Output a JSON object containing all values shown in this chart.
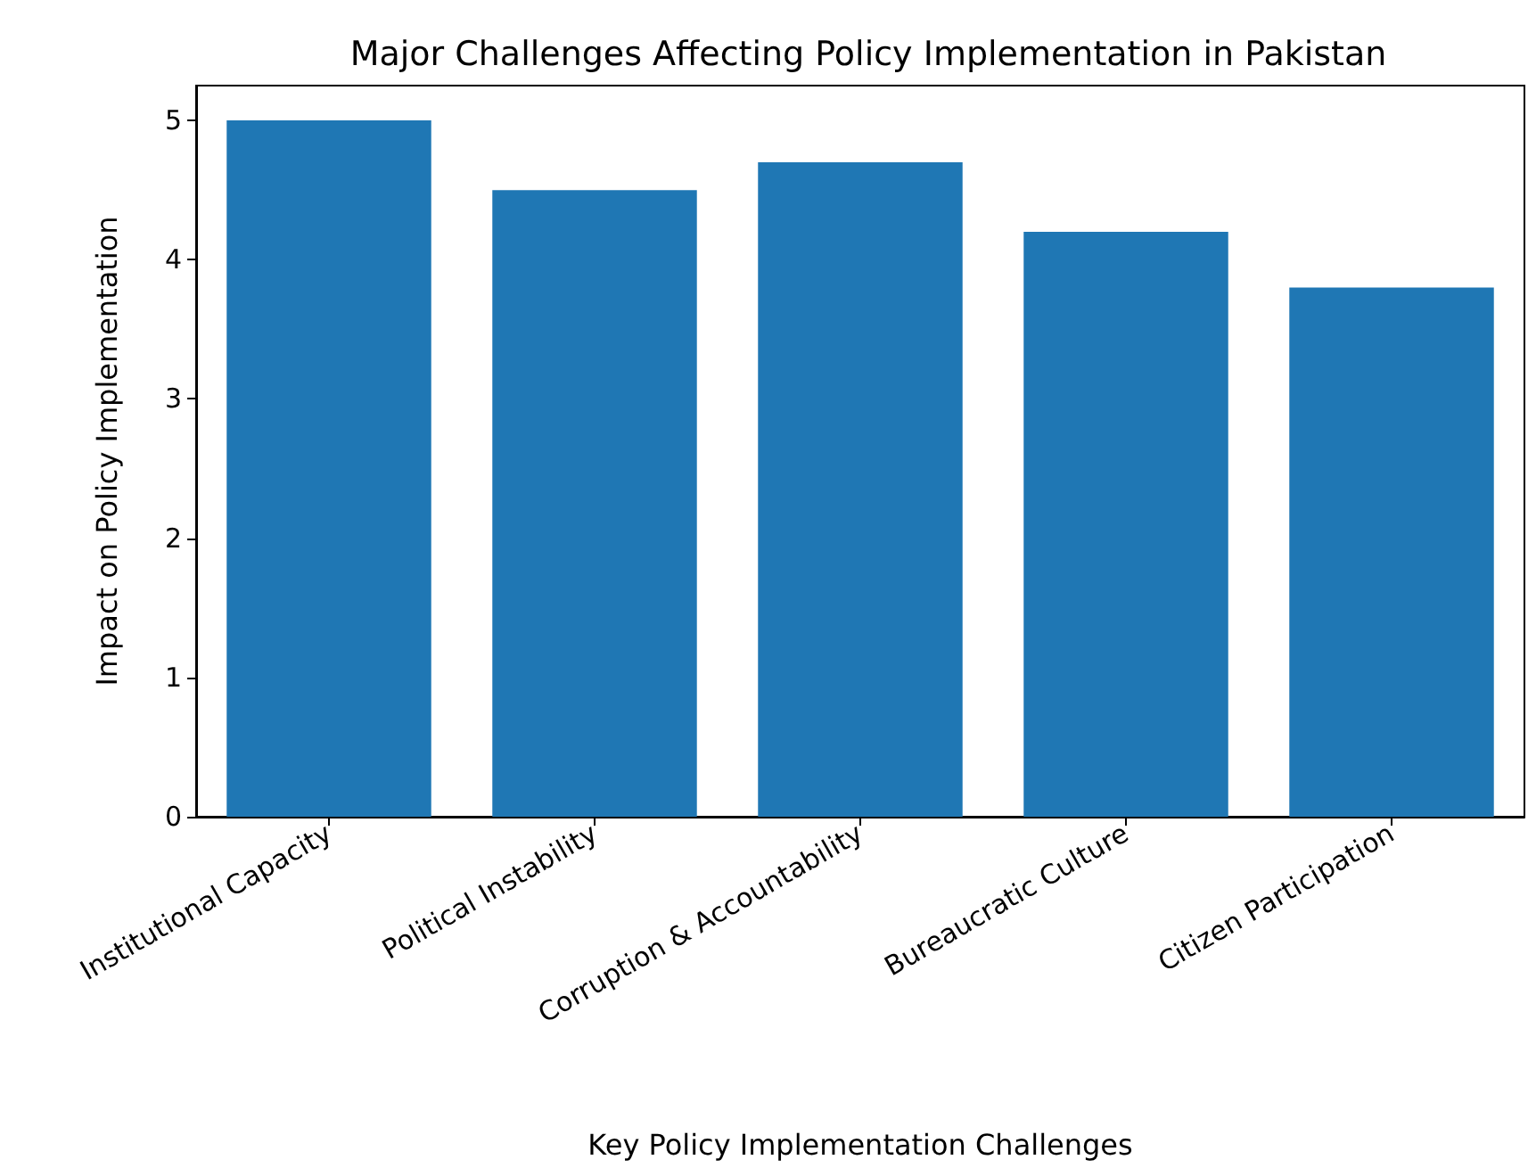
{
  "chart_data": {
    "type": "bar",
    "title": "Major Challenges Affecting Policy Implementation in Pakistan",
    "xlabel": "Key Policy Implementation Challenges",
    "ylabel": "Impact on Policy Implementation",
    "categories": [
      "Institutional Capacity",
      "Political Instability",
      "Corruption & Accountability",
      "Bureaucratic Culture",
      "Citizen Participation"
    ],
    "values": [
      5.0,
      4.5,
      4.7,
      4.2,
      3.8
    ],
    "color": "#1f77b4",
    "ylim": [
      0,
      5.25
    ],
    "yticks": [
      0,
      1,
      2,
      3,
      4,
      5
    ]
  }
}
